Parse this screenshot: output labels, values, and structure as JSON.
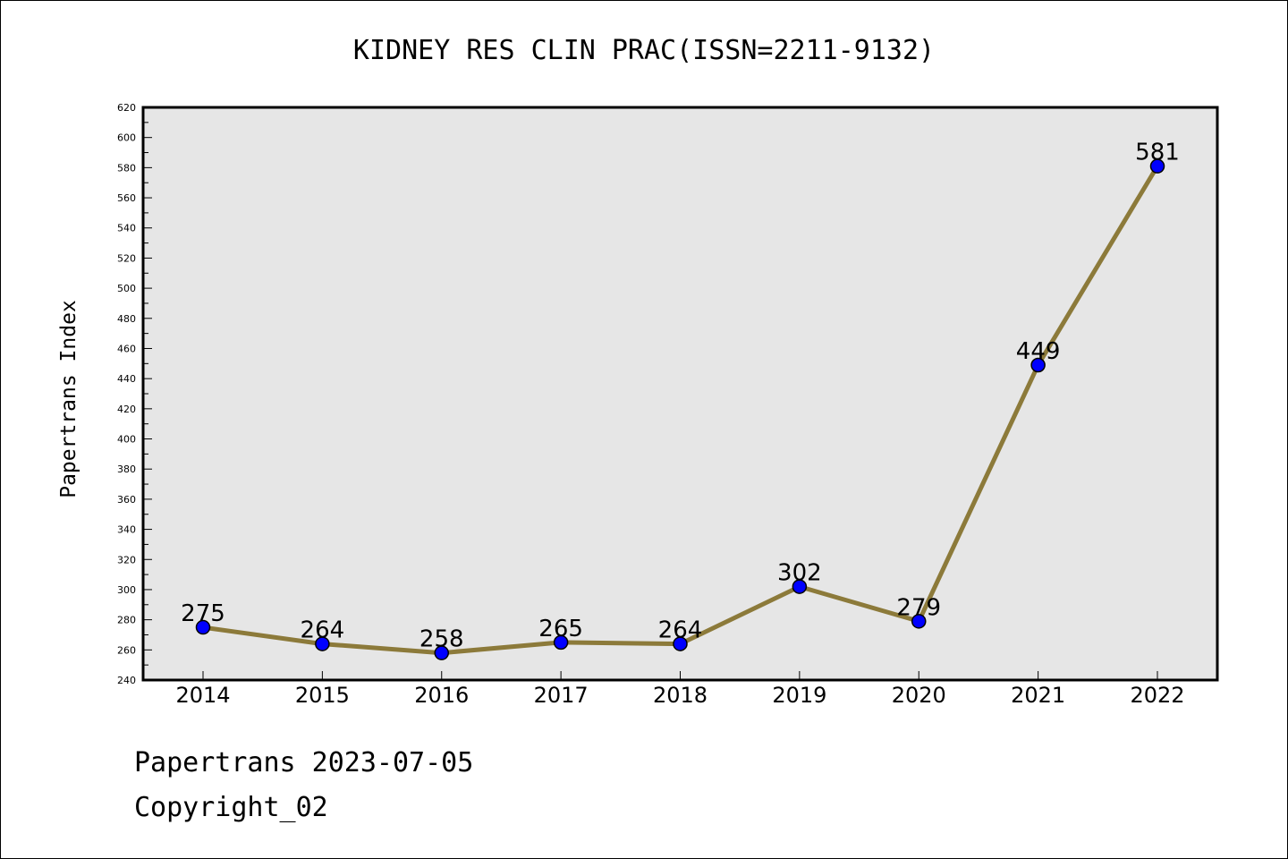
{
  "chart_data": {
    "type": "line",
    "title": "KIDNEY RES CLIN PRAC(ISSN=2211-9132)",
    "xlabel": "",
    "ylabel": "Papertrans Index",
    "categories": [
      "2014",
      "2015",
      "2016",
      "2017",
      "2018",
      "2019",
      "2020",
      "2021",
      "2022"
    ],
    "series": [
      {
        "values": [
          275,
          264,
          258,
          265,
          264,
          302,
          279,
          449,
          581
        ]
      }
    ],
    "data_labels": [
      "275",
      "264",
      "258",
      "265",
      "264",
      "302",
      "279",
      "449",
      "581"
    ],
    "ylim": [
      240,
      620
    ],
    "yticks": [
      "240",
      "260",
      "280",
      "300",
      "320",
      "340",
      "360",
      "380",
      "400",
      "420",
      "440",
      "460",
      "480",
      "500",
      "520",
      "540",
      "560",
      "580",
      "600",
      "620"
    ],
    "grid": false,
    "legend": "none",
    "colors": {
      "line": "#8c7a3a",
      "marker_fill": "#0000ff",
      "marker_edge": "#000000",
      "plot_background": "#e6e6e6"
    }
  },
  "footer": {
    "date_line": "Papertrans 2023-07-05",
    "copyright_line": "Copyright_02"
  }
}
